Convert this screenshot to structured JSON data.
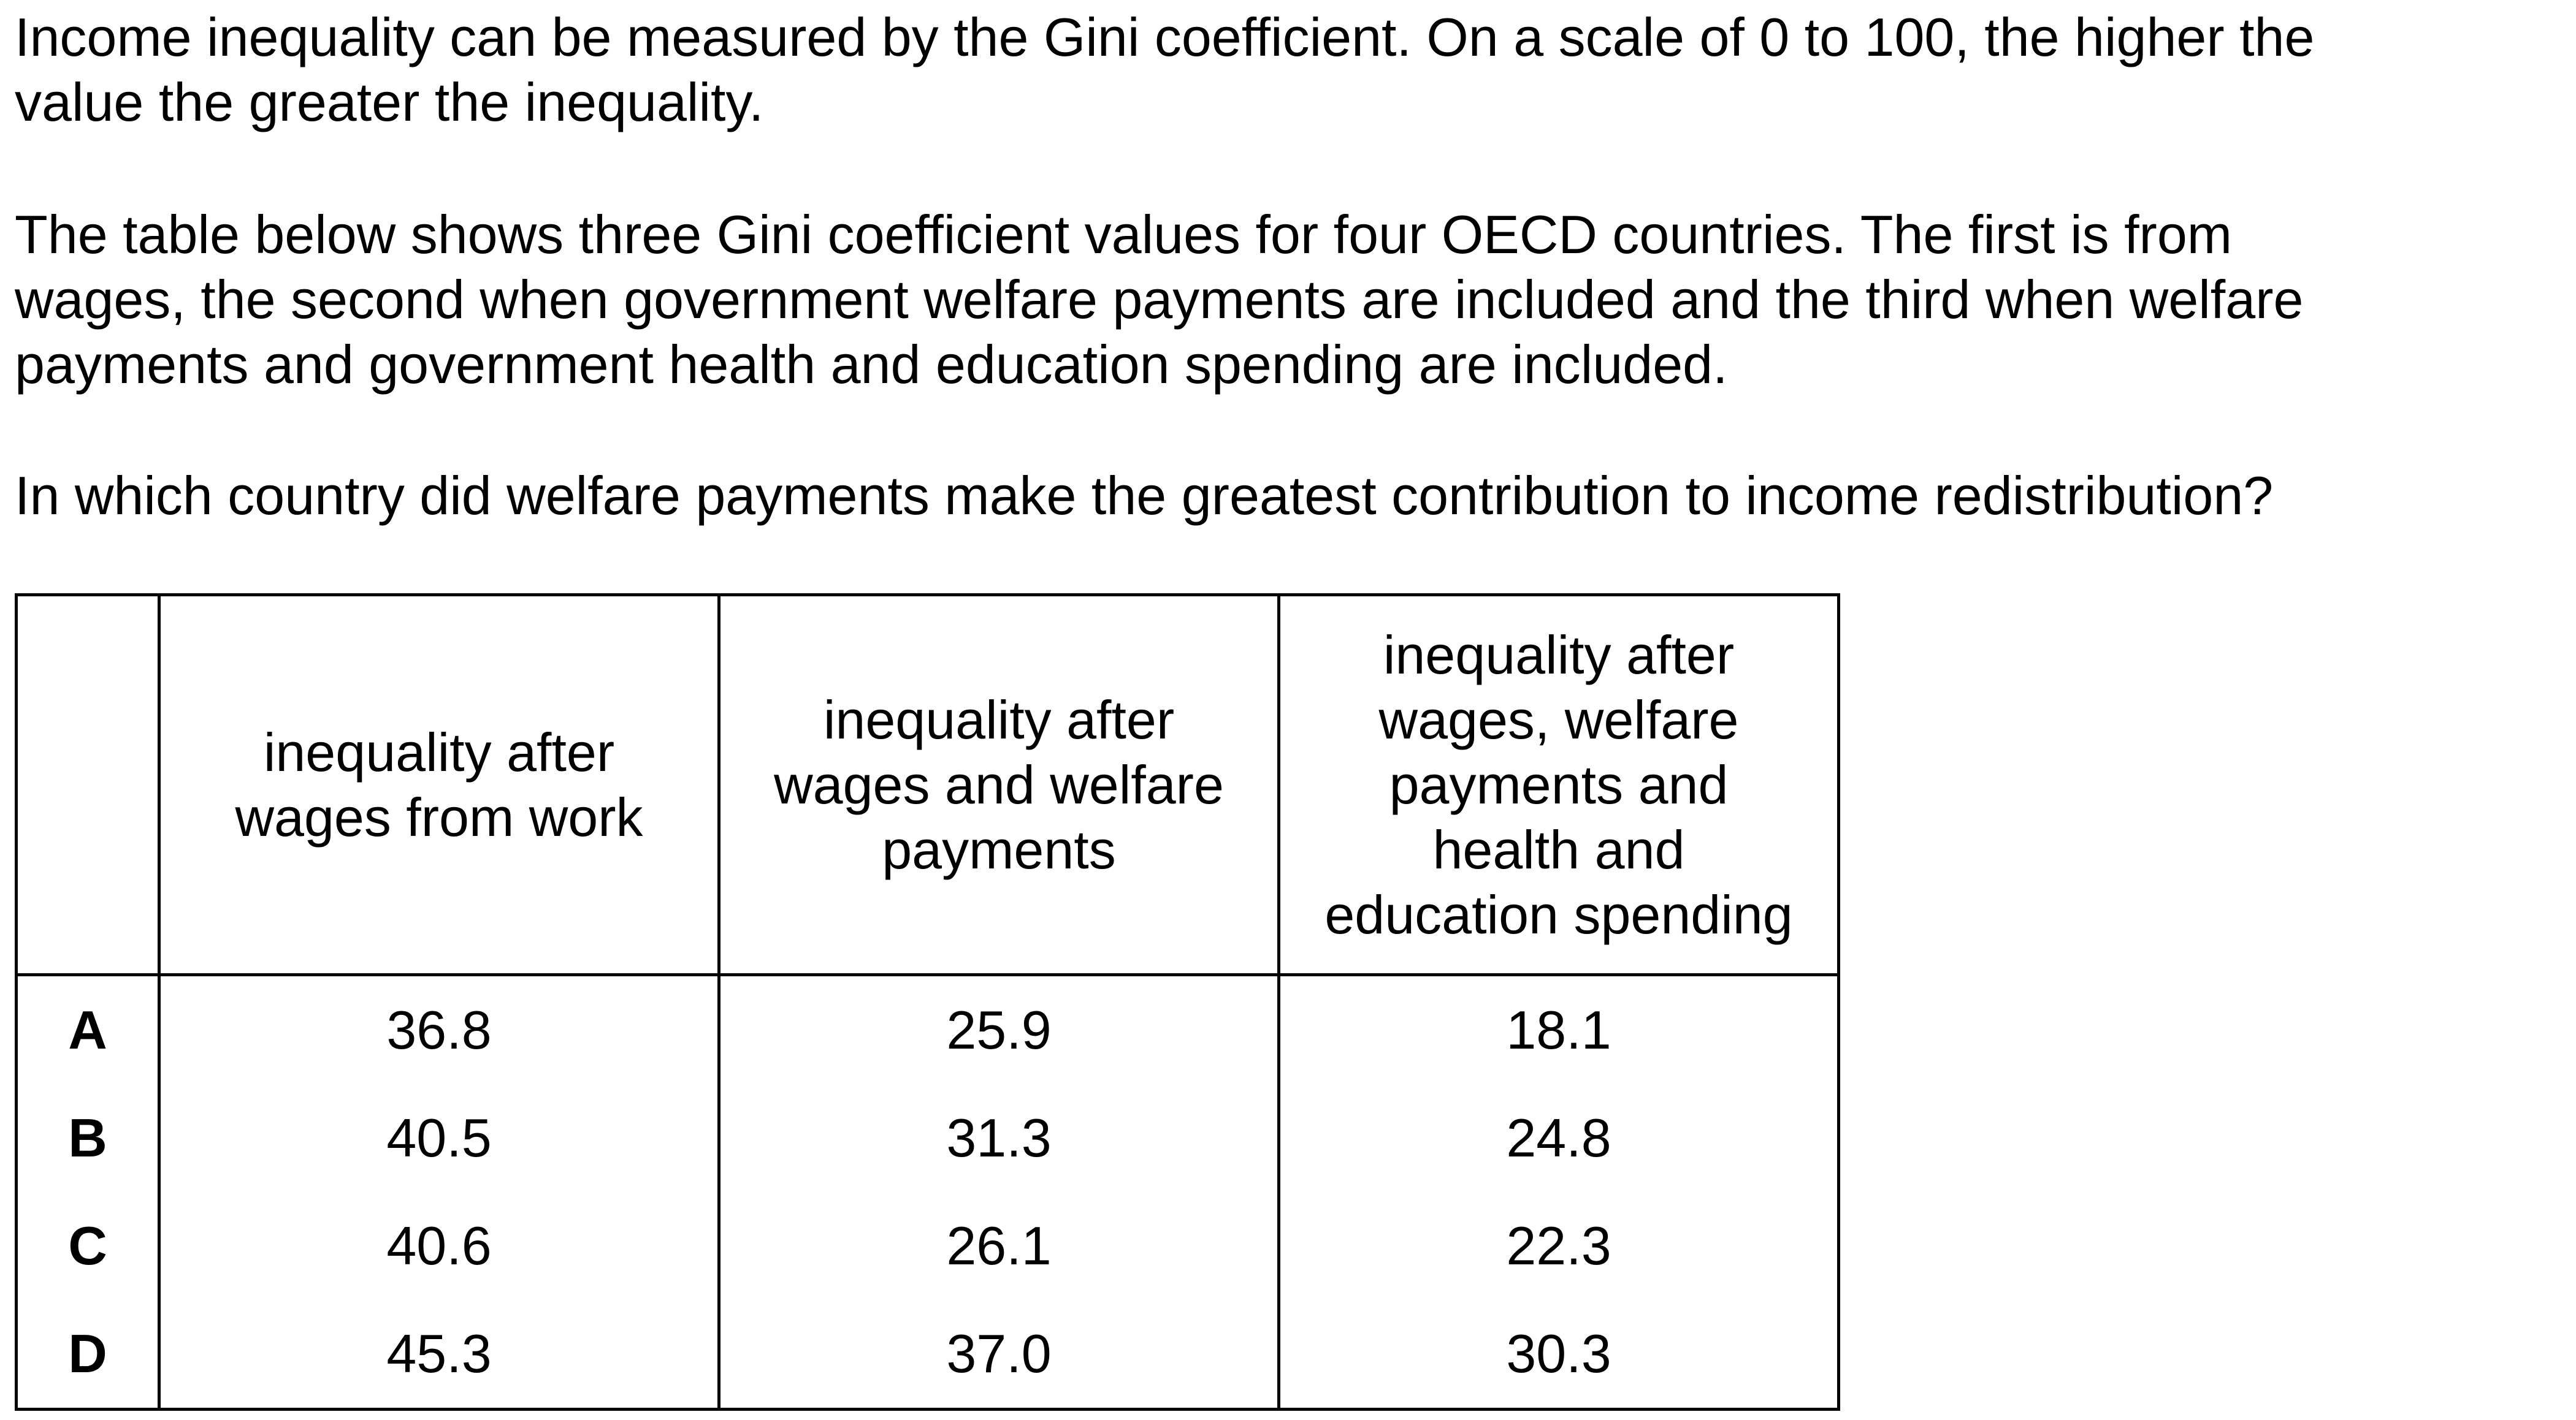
{
  "question": {
    "intro_line1": "Income inequality can be measured by the Gini coefficient. On a scale of 0 to 100, the higher the",
    "intro_line2": "value the greater the inequality.",
    "table_desc_line1": "The table below shows three Gini coefficient values for four OECD countries. The first is from",
    "table_desc_line2": "wages, the second when government welfare payments are included and the third when welfare",
    "table_desc_line3": "payments and government health and education spending are included.",
    "prompt": "In which country did welfare payments make the greatest contribution to income redistribution?"
  },
  "table": {
    "headers": {
      "col1": [
        "inequality after",
        "wages from work"
      ],
      "col2": [
        "inequality after",
        "wages and welfare",
        "payments"
      ],
      "col3": [
        "inequality after",
        "wages, welfare",
        "payments and",
        "health and",
        "education spending"
      ]
    },
    "rows": [
      {
        "option": "A",
        "wages": "36.8",
        "welfare": "25.9",
        "health_education": "18.1"
      },
      {
        "option": "B",
        "wages": "40.5",
        "welfare": "31.3",
        "health_education": "24.8"
      },
      {
        "option": "C",
        "wages": "40.6",
        "welfare": "26.1",
        "health_education": "22.3"
      },
      {
        "option": "D",
        "wages": "45.3",
        "welfare": "37.0",
        "health_education": "30.3"
      }
    ]
  }
}
